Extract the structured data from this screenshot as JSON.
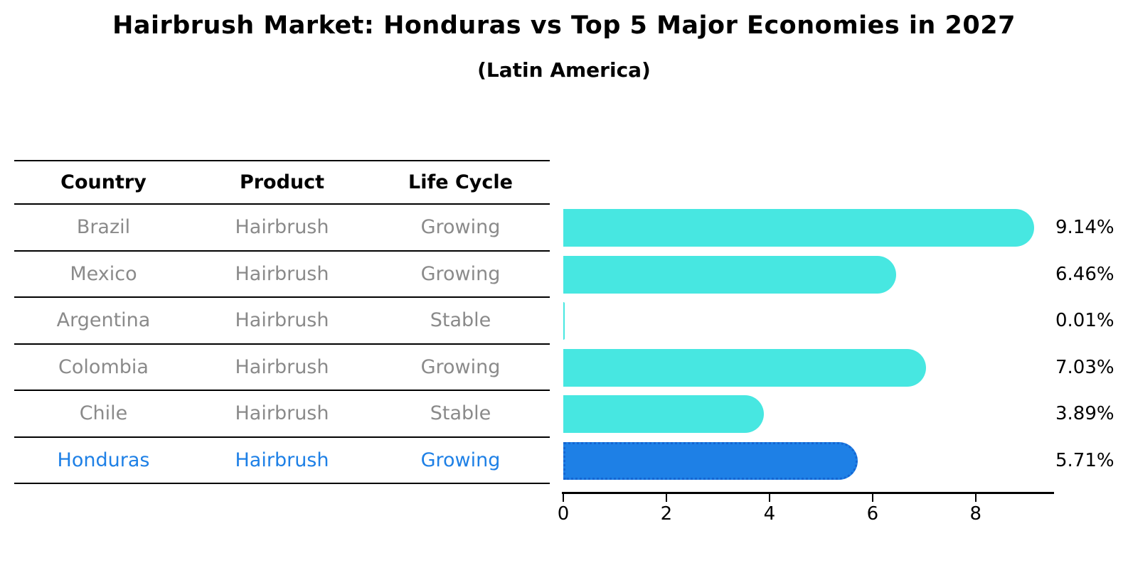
{
  "title": "Hairbrush Market: Honduras vs Top 5 Major Economies in 2027",
  "subtitle": "(Latin America)",
  "table": {
    "headers": [
      "Country",
      "Product",
      "Life Cycle"
    ],
    "rows": [
      {
        "country": "Brazil",
        "product": "Hairbrush",
        "life_cycle": "Growing",
        "highlight": false
      },
      {
        "country": "Mexico",
        "product": "Hairbrush",
        "life_cycle": "Growing",
        "highlight": false
      },
      {
        "country": "Argentina",
        "product": "Hairbrush",
        "life_cycle": "Stable",
        "highlight": false
      },
      {
        "country": "Colombia",
        "product": "Hairbrush",
        "life_cycle": "Growing",
        "highlight": false
      },
      {
        "country": "Chile",
        "product": "Hairbrush",
        "life_cycle": "Stable",
        "highlight": false
      },
      {
        "country": "Honduras",
        "product": "Hairbrush",
        "life_cycle": "Growing",
        "highlight": true
      }
    ]
  },
  "chart_data": {
    "type": "bar",
    "orientation": "horizontal",
    "title": "Hairbrush Market: Honduras vs Top 5 Major Economies in 2027",
    "subtitle": "(Latin America)",
    "categories": [
      "Brazil",
      "Mexico",
      "Argentina",
      "Colombia",
      "Chile",
      "Honduras"
    ],
    "values": [
      9.14,
      6.46,
      0.01,
      7.03,
      3.89,
      5.71
    ],
    "value_labels": [
      "9.14%",
      "6.46%",
      "0.01%",
      "7.03%",
      "3.89%",
      "5.71%"
    ],
    "xlim": [
      0,
      9.52
    ],
    "xticks": [
      0,
      2,
      4,
      6,
      8
    ],
    "grid": false,
    "legend": false,
    "highlight_index": 5
  },
  "colors": {
    "bar": "#47e7e1",
    "highlight_bar": "#1e80e6",
    "highlight_border": "#1566d2",
    "highlight_text": "#1e80e6",
    "row_text": "#8a8a8a",
    "header_text": "#000000"
  }
}
